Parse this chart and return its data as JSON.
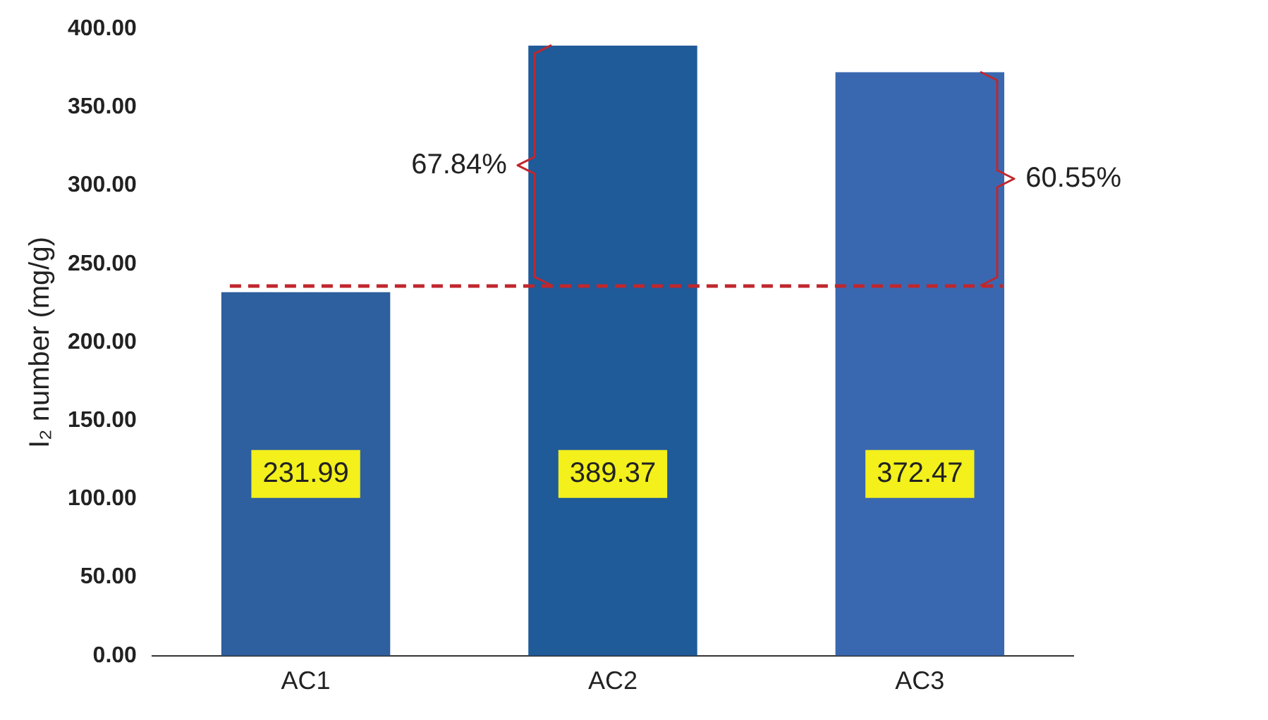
{
  "chart_data": {
    "type": "bar",
    "ylabel": "I₂ number (mg/g)",
    "categories": [
      "AC1",
      "AC2",
      "AC3"
    ],
    "values": [
      231.99,
      389.37,
      372.47
    ],
    "colors": [
      "#2e5f9e",
      "#1f5a99",
      "#3a68b0"
    ],
    "ylim": [
      0,
      400
    ],
    "yticks": [
      {
        "value": 0,
        "label": "0.00"
      },
      {
        "value": 50,
        "label": "50.00"
      },
      {
        "value": 100,
        "label": "100.00"
      },
      {
        "value": 150,
        "label": "150.00"
      },
      {
        "value": 200,
        "label": "200.00"
      },
      {
        "value": 250,
        "label": "250.00"
      },
      {
        "value": 300,
        "label": "300.00"
      },
      {
        "value": 350,
        "label": "350.00"
      },
      {
        "value": 400,
        "label": "400.00"
      }
    ],
    "grid": false,
    "data_labels": true,
    "ref_lines": [
      {
        "axis": "y",
        "value": 236,
        "color": "#c0272d",
        "line_style": "dashed"
      }
    ],
    "annotations": [
      "67.84%",
      "60.55%"
    ]
  }
}
